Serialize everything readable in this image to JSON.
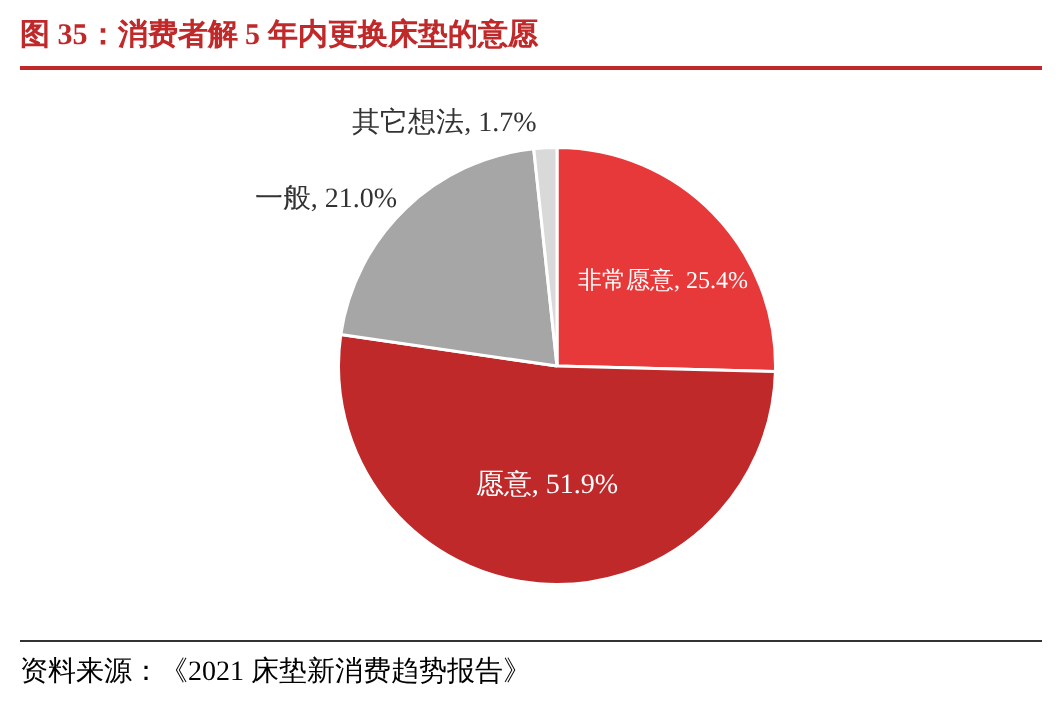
{
  "chart_data": {
    "type": "pie",
    "title": "图 35：消费者解 5 年内更换床垫的意愿",
    "categories": [
      "非常愿意",
      "愿意",
      "一般",
      "其它想法"
    ],
    "values": [
      25.4,
      51.9,
      21.0,
      1.7
    ],
    "value_labels": [
      "25.4%",
      "51.9%",
      "21.0%",
      "1.7%"
    ],
    "colors": [
      "#e8393a",
      "#c0292a",
      "#a6a6a6",
      "#d9d9d9"
    ],
    "legend": false,
    "annotations": [
      "资料来源：《2021 床垫新消费趋势报告》"
    ]
  }
}
